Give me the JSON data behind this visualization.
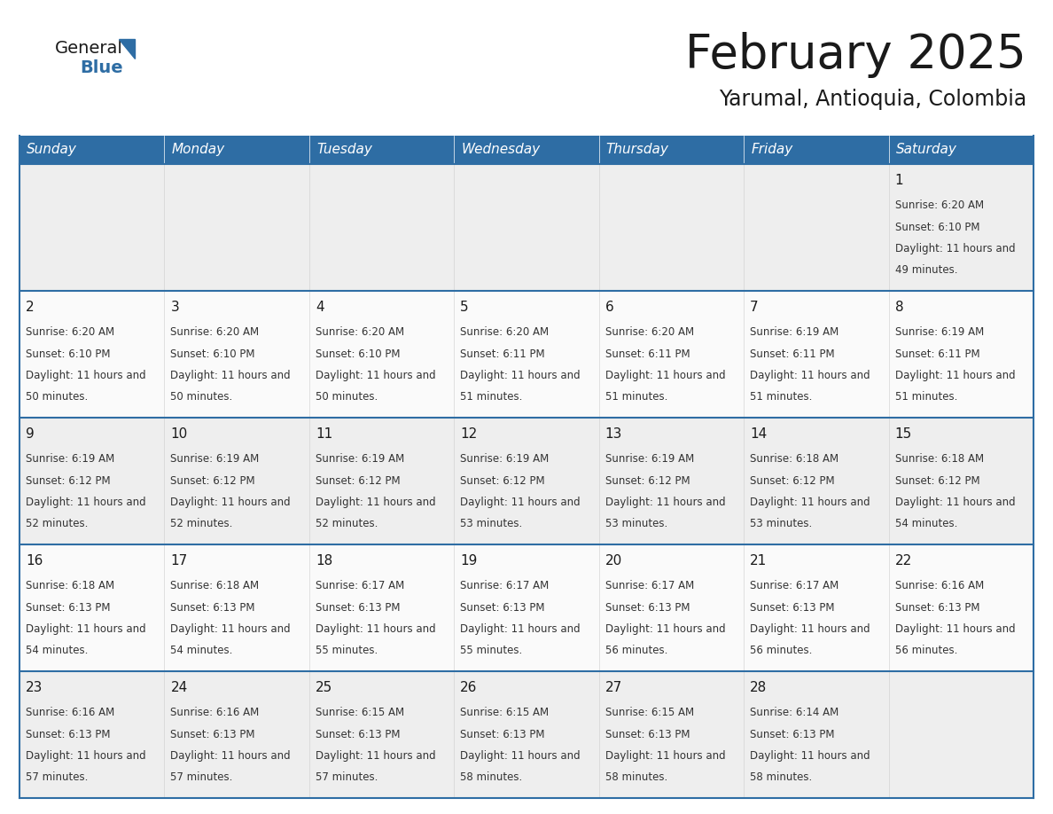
{
  "title": "February 2025",
  "subtitle": "Yarumal, Antioquia, Colombia",
  "header_bg": "#2E6DA4",
  "header_text": "#FFFFFF",
  "border_color": "#2E6DA4",
  "cell_bg_odd": "#EFEFEF",
  "cell_bg_even": "#FAFAFA",
  "day_headers": [
    "Sunday",
    "Monday",
    "Tuesday",
    "Wednesday",
    "Thursday",
    "Friday",
    "Saturday"
  ],
  "logo_general_color": "#1a1a1a",
  "logo_blue_color": "#2E6DA4",
  "calendar_data": [
    [
      null,
      null,
      null,
      null,
      null,
      null,
      1
    ],
    [
      2,
      3,
      4,
      5,
      6,
      7,
      8
    ],
    [
      9,
      10,
      11,
      12,
      13,
      14,
      15
    ],
    [
      16,
      17,
      18,
      19,
      20,
      21,
      22
    ],
    [
      23,
      24,
      25,
      26,
      27,
      28,
      null
    ]
  ],
  "sunrise_data": {
    "1": "6:20 AM",
    "2": "6:20 AM",
    "3": "6:20 AM",
    "4": "6:20 AM",
    "5": "6:20 AM",
    "6": "6:20 AM",
    "7": "6:19 AM",
    "8": "6:19 AM",
    "9": "6:19 AM",
    "10": "6:19 AM",
    "11": "6:19 AM",
    "12": "6:19 AM",
    "13": "6:19 AM",
    "14": "6:18 AM",
    "15": "6:18 AM",
    "16": "6:18 AM",
    "17": "6:18 AM",
    "18": "6:17 AM",
    "19": "6:17 AM",
    "20": "6:17 AM",
    "21": "6:17 AM",
    "22": "6:16 AM",
    "23": "6:16 AM",
    "24": "6:16 AM",
    "25": "6:15 AM",
    "26": "6:15 AM",
    "27": "6:15 AM",
    "28": "6:14 AM"
  },
  "sunset_data": {
    "1": "6:10 PM",
    "2": "6:10 PM",
    "3": "6:10 PM",
    "4": "6:10 PM",
    "5": "6:11 PM",
    "6": "6:11 PM",
    "7": "6:11 PM",
    "8": "6:11 PM",
    "9": "6:12 PM",
    "10": "6:12 PM",
    "11": "6:12 PM",
    "12": "6:12 PM",
    "13": "6:12 PM",
    "14": "6:12 PM",
    "15": "6:12 PM",
    "16": "6:13 PM",
    "17": "6:13 PM",
    "18": "6:13 PM",
    "19": "6:13 PM",
    "20": "6:13 PM",
    "21": "6:13 PM",
    "22": "6:13 PM",
    "23": "6:13 PM",
    "24": "6:13 PM",
    "25": "6:13 PM",
    "26": "6:13 PM",
    "27": "6:13 PM",
    "28": "6:13 PM"
  },
  "daylight_data": {
    "1": "11 hours and 49 minutes.",
    "2": "11 hours and 50 minutes.",
    "3": "11 hours and 50 minutes.",
    "4": "11 hours and 50 minutes.",
    "5": "11 hours and 51 minutes.",
    "6": "11 hours and 51 minutes.",
    "7": "11 hours and 51 minutes.",
    "8": "11 hours and 51 minutes.",
    "9": "11 hours and 52 minutes.",
    "10": "11 hours and 52 minutes.",
    "11": "11 hours and 52 minutes.",
    "12": "11 hours and 53 minutes.",
    "13": "11 hours and 53 minutes.",
    "14": "11 hours and 53 minutes.",
    "15": "11 hours and 54 minutes.",
    "16": "11 hours and 54 minutes.",
    "17": "11 hours and 54 minutes.",
    "18": "11 hours and 55 minutes.",
    "19": "11 hours and 55 minutes.",
    "20": "11 hours and 56 minutes.",
    "21": "11 hours and 56 minutes.",
    "22": "11 hours and 56 minutes.",
    "23": "11 hours and 57 minutes.",
    "24": "11 hours and 57 minutes.",
    "25": "11 hours and 57 minutes.",
    "26": "11 hours and 58 minutes.",
    "27": "11 hours and 58 minutes.",
    "28": "11 hours and 58 minutes."
  }
}
